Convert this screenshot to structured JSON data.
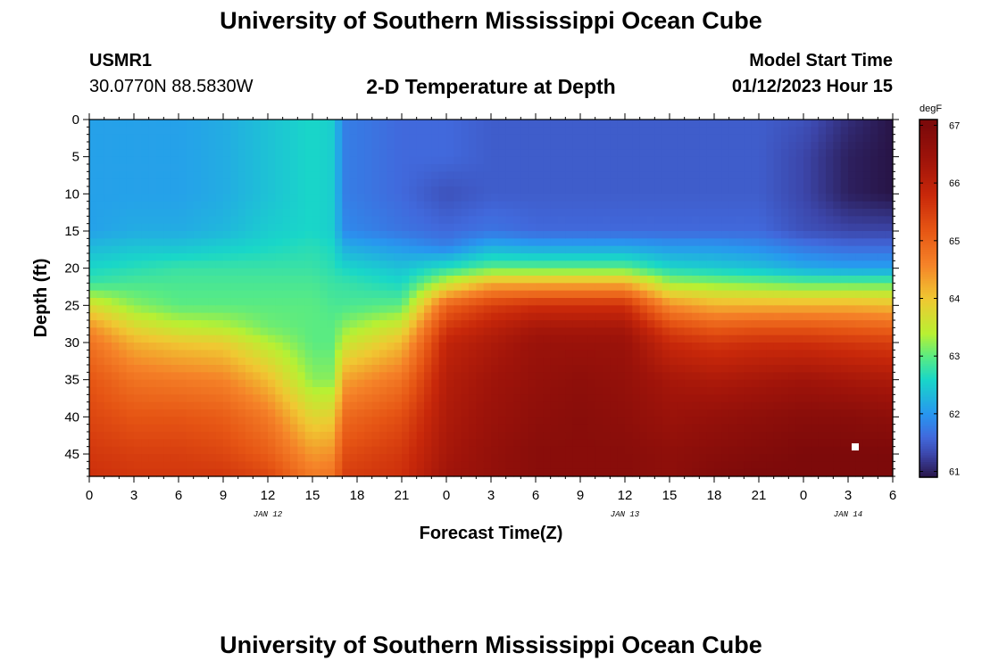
{
  "header": {
    "title": "University of Southern Mississippi Ocean Cube",
    "station_id": "USMR1",
    "coords": "30.0770N  88.5830W",
    "chart_title": "2-D Temperature at Depth",
    "model_start_label": "Model Start Time",
    "model_start_value": "01/12/2023 Hour 15"
  },
  "footer": {
    "title": "University of Southern Mississippi Ocean Cube"
  },
  "chart_data": {
    "type": "heatmap",
    "title": "2-D Temperature at Depth",
    "xlabel": "Forecast Time(Z)",
    "ylabel": "Depth (ft)",
    "x_tick_labels": [
      "0",
      "3",
      "6",
      "9",
      "12",
      "15",
      "18",
      "21",
      "0",
      "3",
      "6",
      "9",
      "12",
      "15",
      "18",
      "21",
      "0",
      "3",
      "6"
    ],
    "x_hours": [
      0,
      3,
      6,
      9,
      12,
      15,
      18,
      21,
      24,
      27,
      30,
      33,
      36,
      39,
      42,
      45,
      48,
      51,
      54
    ],
    "xlim": [
      0,
      54
    ],
    "date_labels": [
      {
        "text": "JAN 12",
        "hour": 12
      },
      {
        "text": "JAN 13",
        "hour": 36
      },
      {
        "text": "JAN 14",
        "hour": 51
      }
    ],
    "y_ticks": [
      0,
      5,
      10,
      15,
      20,
      25,
      30,
      35,
      40,
      45
    ],
    "ylim": [
      0,
      48
    ],
    "colorbar": {
      "unit": "degF",
      "ticks": [
        61,
        62,
        63,
        64,
        65,
        66,
        67
      ],
      "range": [
        60.9,
        67.1
      ]
    },
    "grid": false,
    "profile_hours": [
      0,
      3,
      6,
      9,
      12,
      15,
      16.5,
      17,
      21,
      24,
      27,
      30,
      33,
      36,
      39,
      42,
      45,
      48,
      51,
      54
    ],
    "depths_ft": [
      0,
      5,
      10,
      15,
      17,
      20,
      22,
      25,
      28,
      30,
      35,
      40,
      45,
      48
    ],
    "temperature_degF": [
      [
        62.1,
        62.1,
        62.1,
        62.1,
        62.3,
        62.6,
        62.8,
        63.7,
        64.5,
        64.8,
        65.2,
        65.4,
        65.6,
        65.7
      ],
      [
        62.1,
        62.1,
        62.1,
        62.2,
        62.4,
        62.7,
        62.9,
        63.2,
        63.8,
        64.2,
        64.8,
        65.2,
        65.5,
        65.6
      ],
      [
        62.1,
        62.1,
        62.1,
        62.2,
        62.4,
        62.8,
        62.9,
        63.0,
        63.5,
        64.0,
        64.7,
        65.2,
        65.5,
        65.6
      ],
      [
        62.2,
        62.2,
        62.2,
        62.3,
        62.5,
        62.8,
        62.9,
        63.0,
        63.4,
        63.9,
        64.6,
        65.1,
        65.4,
        65.6
      ],
      [
        62.4,
        62.4,
        62.4,
        62.5,
        62.6,
        62.8,
        62.9,
        63.0,
        63.1,
        63.4,
        64.1,
        64.7,
        65.1,
        65.4
      ],
      [
        62.6,
        62.6,
        62.6,
        62.6,
        62.7,
        62.8,
        62.9,
        63.0,
        63.0,
        63.0,
        63.2,
        63.8,
        64.4,
        64.7
      ],
      [
        62.5,
        62.5,
        62.5,
        62.5,
        62.6,
        62.7,
        62.8,
        62.9,
        63.0,
        63.0,
        63.2,
        63.9,
        64.5,
        64.8
      ],
      [
        61.8,
        61.8,
        61.8,
        61.9,
        62.2,
        62.6,
        62.8,
        62.9,
        63.2,
        63.5,
        64.3,
        64.9,
        65.3,
        65.5
      ],
      [
        61.6,
        61.6,
        61.6,
        61.7,
        62.0,
        62.4,
        62.6,
        63.0,
        63.7,
        64.1,
        64.8,
        65.3,
        65.6,
        65.7
      ],
      [
        61.6,
        61.6,
        61.4,
        61.6,
        61.8,
        62.7,
        63.5,
        65.0,
        65.6,
        65.9,
        66.1,
        66.2,
        66.3,
        66.4
      ],
      [
        61.5,
        61.5,
        61.5,
        61.7,
        62.2,
        63.0,
        64.2,
        65.5,
        66.0,
        66.2,
        66.4,
        66.5,
        66.6,
        66.6
      ],
      [
        61.5,
        61.5,
        61.5,
        61.6,
        62.1,
        63.0,
        64.2,
        65.7,
        66.3,
        66.5,
        66.6,
        66.7,
        66.8,
        66.8
      ],
      [
        61.5,
        61.5,
        61.5,
        61.6,
        62.1,
        63.0,
        64.2,
        65.7,
        66.3,
        66.5,
        66.7,
        66.8,
        66.8,
        66.8
      ],
      [
        61.5,
        61.5,
        61.5,
        61.6,
        62.1,
        63.0,
        64.2,
        65.7,
        66.3,
        66.5,
        66.6,
        66.7,
        66.8,
        66.8
      ],
      [
        61.5,
        61.5,
        61.5,
        61.6,
        62.0,
        62.6,
        63.3,
        64.5,
        65.4,
        65.8,
        66.3,
        66.5,
        66.7,
        66.7
      ],
      [
        61.5,
        61.5,
        61.5,
        61.6,
        62.0,
        62.5,
        63.2,
        64.2,
        65.1,
        65.6,
        66.2,
        66.6,
        66.8,
        66.9
      ],
      [
        61.5,
        61.5,
        61.5,
        61.6,
        61.9,
        62.4,
        63.1,
        64.2,
        65.2,
        65.7,
        66.3,
        66.7,
        66.9,
        67.0
      ],
      [
        61.4,
        61.3,
        61.3,
        61.4,
        61.7,
        62.2,
        63.0,
        64.2,
        65.2,
        65.7,
        66.4,
        66.8,
        67.0,
        67.0
      ],
      [
        61.1,
        61.0,
        61.0,
        61.3,
        61.6,
        62.1,
        63.0,
        64.2,
        65.1,
        65.6,
        66.3,
        66.8,
        67.0,
        67.0
      ],
      [
        60.9,
        60.9,
        60.9,
        61.3,
        61.6,
        62.1,
        63.0,
        64.1,
        65.0,
        65.5,
        66.2,
        66.7,
        67.0,
        67.0
      ]
    ]
  }
}
